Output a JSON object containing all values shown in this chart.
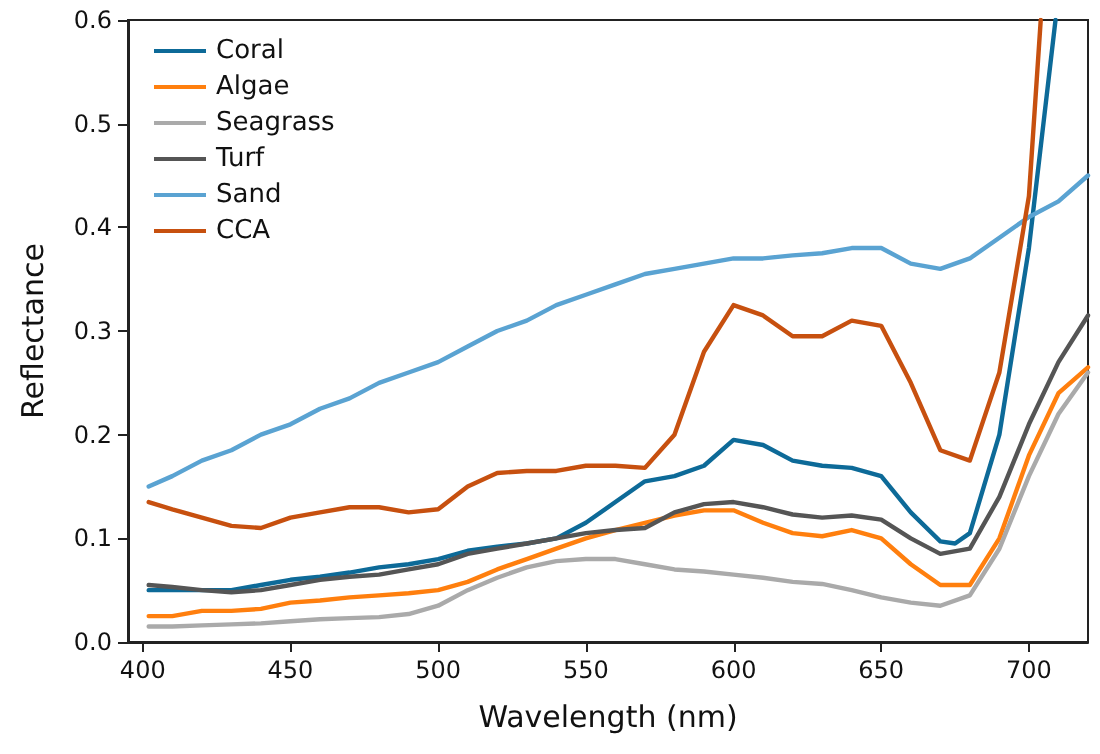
{
  "chart_data": {
    "type": "line",
    "xlabel": "Wavelength (nm)",
    "ylabel": "Reflectance",
    "xlim": [
      395,
      720
    ],
    "xticks": [
      400,
      450,
      500,
      550,
      600,
      650,
      700
    ],
    "ylim": [
      0,
      0.6
    ],
    "yticks": [
      {
        "value": 0,
        "label": "0.0"
      },
      0.1,
      0.2,
      0.3,
      0.4,
      0.5,
      0.6
    ],
    "grid": false,
    "legend": "top left",
    "marker": "none",
    "line_style": "solid",
    "x": [
      402,
      410,
      420,
      430,
      440,
      450,
      460,
      470,
      480,
      490,
      500,
      510,
      520,
      530,
      540,
      550,
      560,
      570,
      580,
      590,
      600,
      610,
      620,
      630,
      640,
      650,
      660,
      670,
      680,
      690,
      700,
      710,
      720
    ],
    "series": [
      {
        "name": "Coral",
        "color": "#0d6a98",
        "x": [
          402,
          410,
          420,
          430,
          440,
          450,
          460,
          470,
          480,
          490,
          500,
          510,
          520,
          530,
          540,
          550,
          560,
          570,
          580,
          590,
          600,
          610,
          620,
          630,
          640,
          650,
          660,
          670,
          675,
          680,
          690,
          700,
          709
        ],
        "values": [
          0.05,
          0.05,
          0.05,
          0.05,
          0.055,
          0.06,
          0.063,
          0.067,
          0.072,
          0.075,
          0.08,
          0.088,
          0.092,
          0.095,
          0.1,
          0.115,
          0.135,
          0.155,
          0.16,
          0.17,
          0.195,
          0.19,
          0.175,
          0.17,
          0.168,
          0.16,
          0.125,
          0.097,
          0.095,
          0.105,
          0.2,
          0.38,
          0.6
        ]
      },
      {
        "name": "Algae",
        "color": "#ff7f0e",
        "values": [
          0.025,
          0.025,
          0.03,
          0.03,
          0.032,
          0.038,
          0.04,
          0.043,
          0.045,
          0.047,
          0.05,
          0.058,
          0.07,
          0.08,
          0.09,
          0.1,
          0.108,
          0.115,
          0.122,
          0.127,
          0.127,
          0.115,
          0.105,
          0.102,
          0.108,
          0.1,
          0.075,
          0.055,
          0.055,
          0.1,
          0.18,
          0.24,
          0.265
        ]
      },
      {
        "name": "Seagrass",
        "color": "#aaaaaa",
        "values": [
          0.015,
          0.015,
          0.016,
          0.017,
          0.018,
          0.02,
          0.022,
          0.023,
          0.024,
          0.027,
          0.035,
          0.05,
          0.062,
          0.072,
          0.078,
          0.08,
          0.08,
          0.075,
          0.07,
          0.068,
          0.065,
          0.062,
          0.058,
          0.056,
          0.05,
          0.043,
          0.038,
          0.035,
          0.045,
          0.09,
          0.16,
          0.22,
          0.26
        ]
      },
      {
        "name": "Turf",
        "color": "#555555",
        "values": [
          0.055,
          0.053,
          0.05,
          0.048,
          0.05,
          0.055,
          0.06,
          0.063,
          0.065,
          0.07,
          0.075,
          0.085,
          0.09,
          0.095,
          0.1,
          0.105,
          0.108,
          0.11,
          0.125,
          0.133,
          0.135,
          0.13,
          0.123,
          0.12,
          0.122,
          0.118,
          0.1,
          0.085,
          0.09,
          0.14,
          0.21,
          0.27,
          0.315
        ]
      },
      {
        "name": "Sand",
        "color": "#5aa3d2",
        "values": [
          0.15,
          0.16,
          0.175,
          0.185,
          0.2,
          0.21,
          0.225,
          0.235,
          0.25,
          0.26,
          0.27,
          0.285,
          0.3,
          0.31,
          0.325,
          0.335,
          0.345,
          0.355,
          0.36,
          0.365,
          0.37,
          0.37,
          0.373,
          0.375,
          0.38,
          0.38,
          0.365,
          0.36,
          0.37,
          0.39,
          0.41,
          0.425,
          0.45
        ]
      },
      {
        "name": "CCA",
        "color": "#c7500f",
        "x": [
          402,
          410,
          420,
          430,
          440,
          450,
          460,
          470,
          480,
          490,
          500,
          510,
          520,
          530,
          540,
          550,
          560,
          570,
          580,
          590,
          600,
          610,
          620,
          630,
          640,
          650,
          660,
          670,
          680,
          690,
          700,
          704
        ],
        "values": [
          0.135,
          0.128,
          0.12,
          0.112,
          0.11,
          0.12,
          0.125,
          0.13,
          0.13,
          0.125,
          0.128,
          0.15,
          0.163,
          0.165,
          0.165,
          0.17,
          0.17,
          0.168,
          0.2,
          0.28,
          0.325,
          0.315,
          0.295,
          0.295,
          0.31,
          0.305,
          0.25,
          0.185,
          0.175,
          0.26,
          0.43,
          0.6
        ]
      }
    ]
  }
}
